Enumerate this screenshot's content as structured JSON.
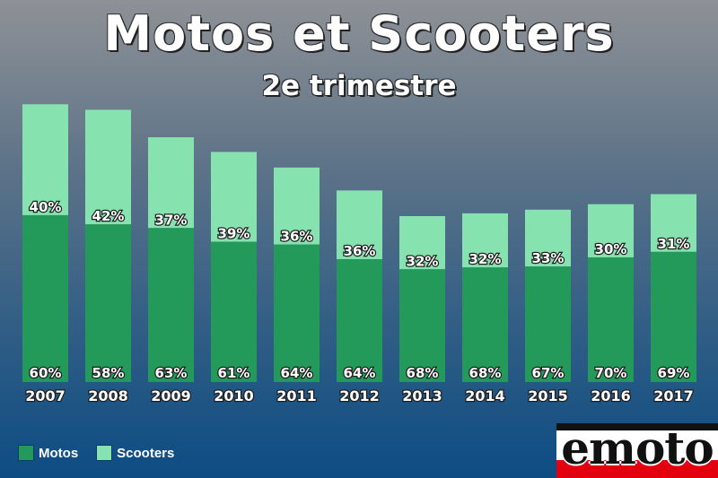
{
  "header": {
    "title": "Motos et Scooters",
    "subtitle": "2e trimestre"
  },
  "chart_data": {
    "type": "bar",
    "stacked": true,
    "title": "Motos et Scooters",
    "subtitle": "2e trimestre",
    "categories": [
      "2007",
      "2008",
      "2009",
      "2010",
      "2011",
      "2012",
      "2013",
      "2014",
      "2015",
      "2016",
      "2017"
    ],
    "series": [
      {
        "name": "Motos",
        "percent_labels": [
          "60%",
          "58%",
          "63%",
          "61%",
          "64%",
          "64%",
          "68%",
          "68%",
          "67%",
          "70%",
          "69%"
        ],
        "values": [
          18200,
          17200,
          16800,
          15300,
          15000,
          13400,
          12300,
          12500,
          12600,
          13600,
          14200
        ]
      },
      {
        "name": "Scooters",
        "percent_labels": [
          "40%",
          "42%",
          "37%",
          "39%",
          "36%",
          "36%",
          "32%",
          "32%",
          "33%",
          "30%",
          "31%"
        ],
        "values": [
          12100,
          12500,
          9900,
          9800,
          8400,
          7500,
          5800,
          5900,
          6200,
          5800,
          6300
        ]
      }
    ],
    "ylim": [
      0,
      31500
    ],
    "colors": {
      "Motos": "#249a5a",
      "Scooters": "#86e2ae"
    },
    "legend_position": "bottom-left",
    "grid": false
  },
  "legend": {
    "items": [
      {
        "label": "Motos",
        "color": "#249a5a"
      },
      {
        "label": "Scooters",
        "color": "#86e2ae"
      }
    ]
  },
  "logo": {
    "text": "emoto",
    "icon": "emoto-logo"
  }
}
